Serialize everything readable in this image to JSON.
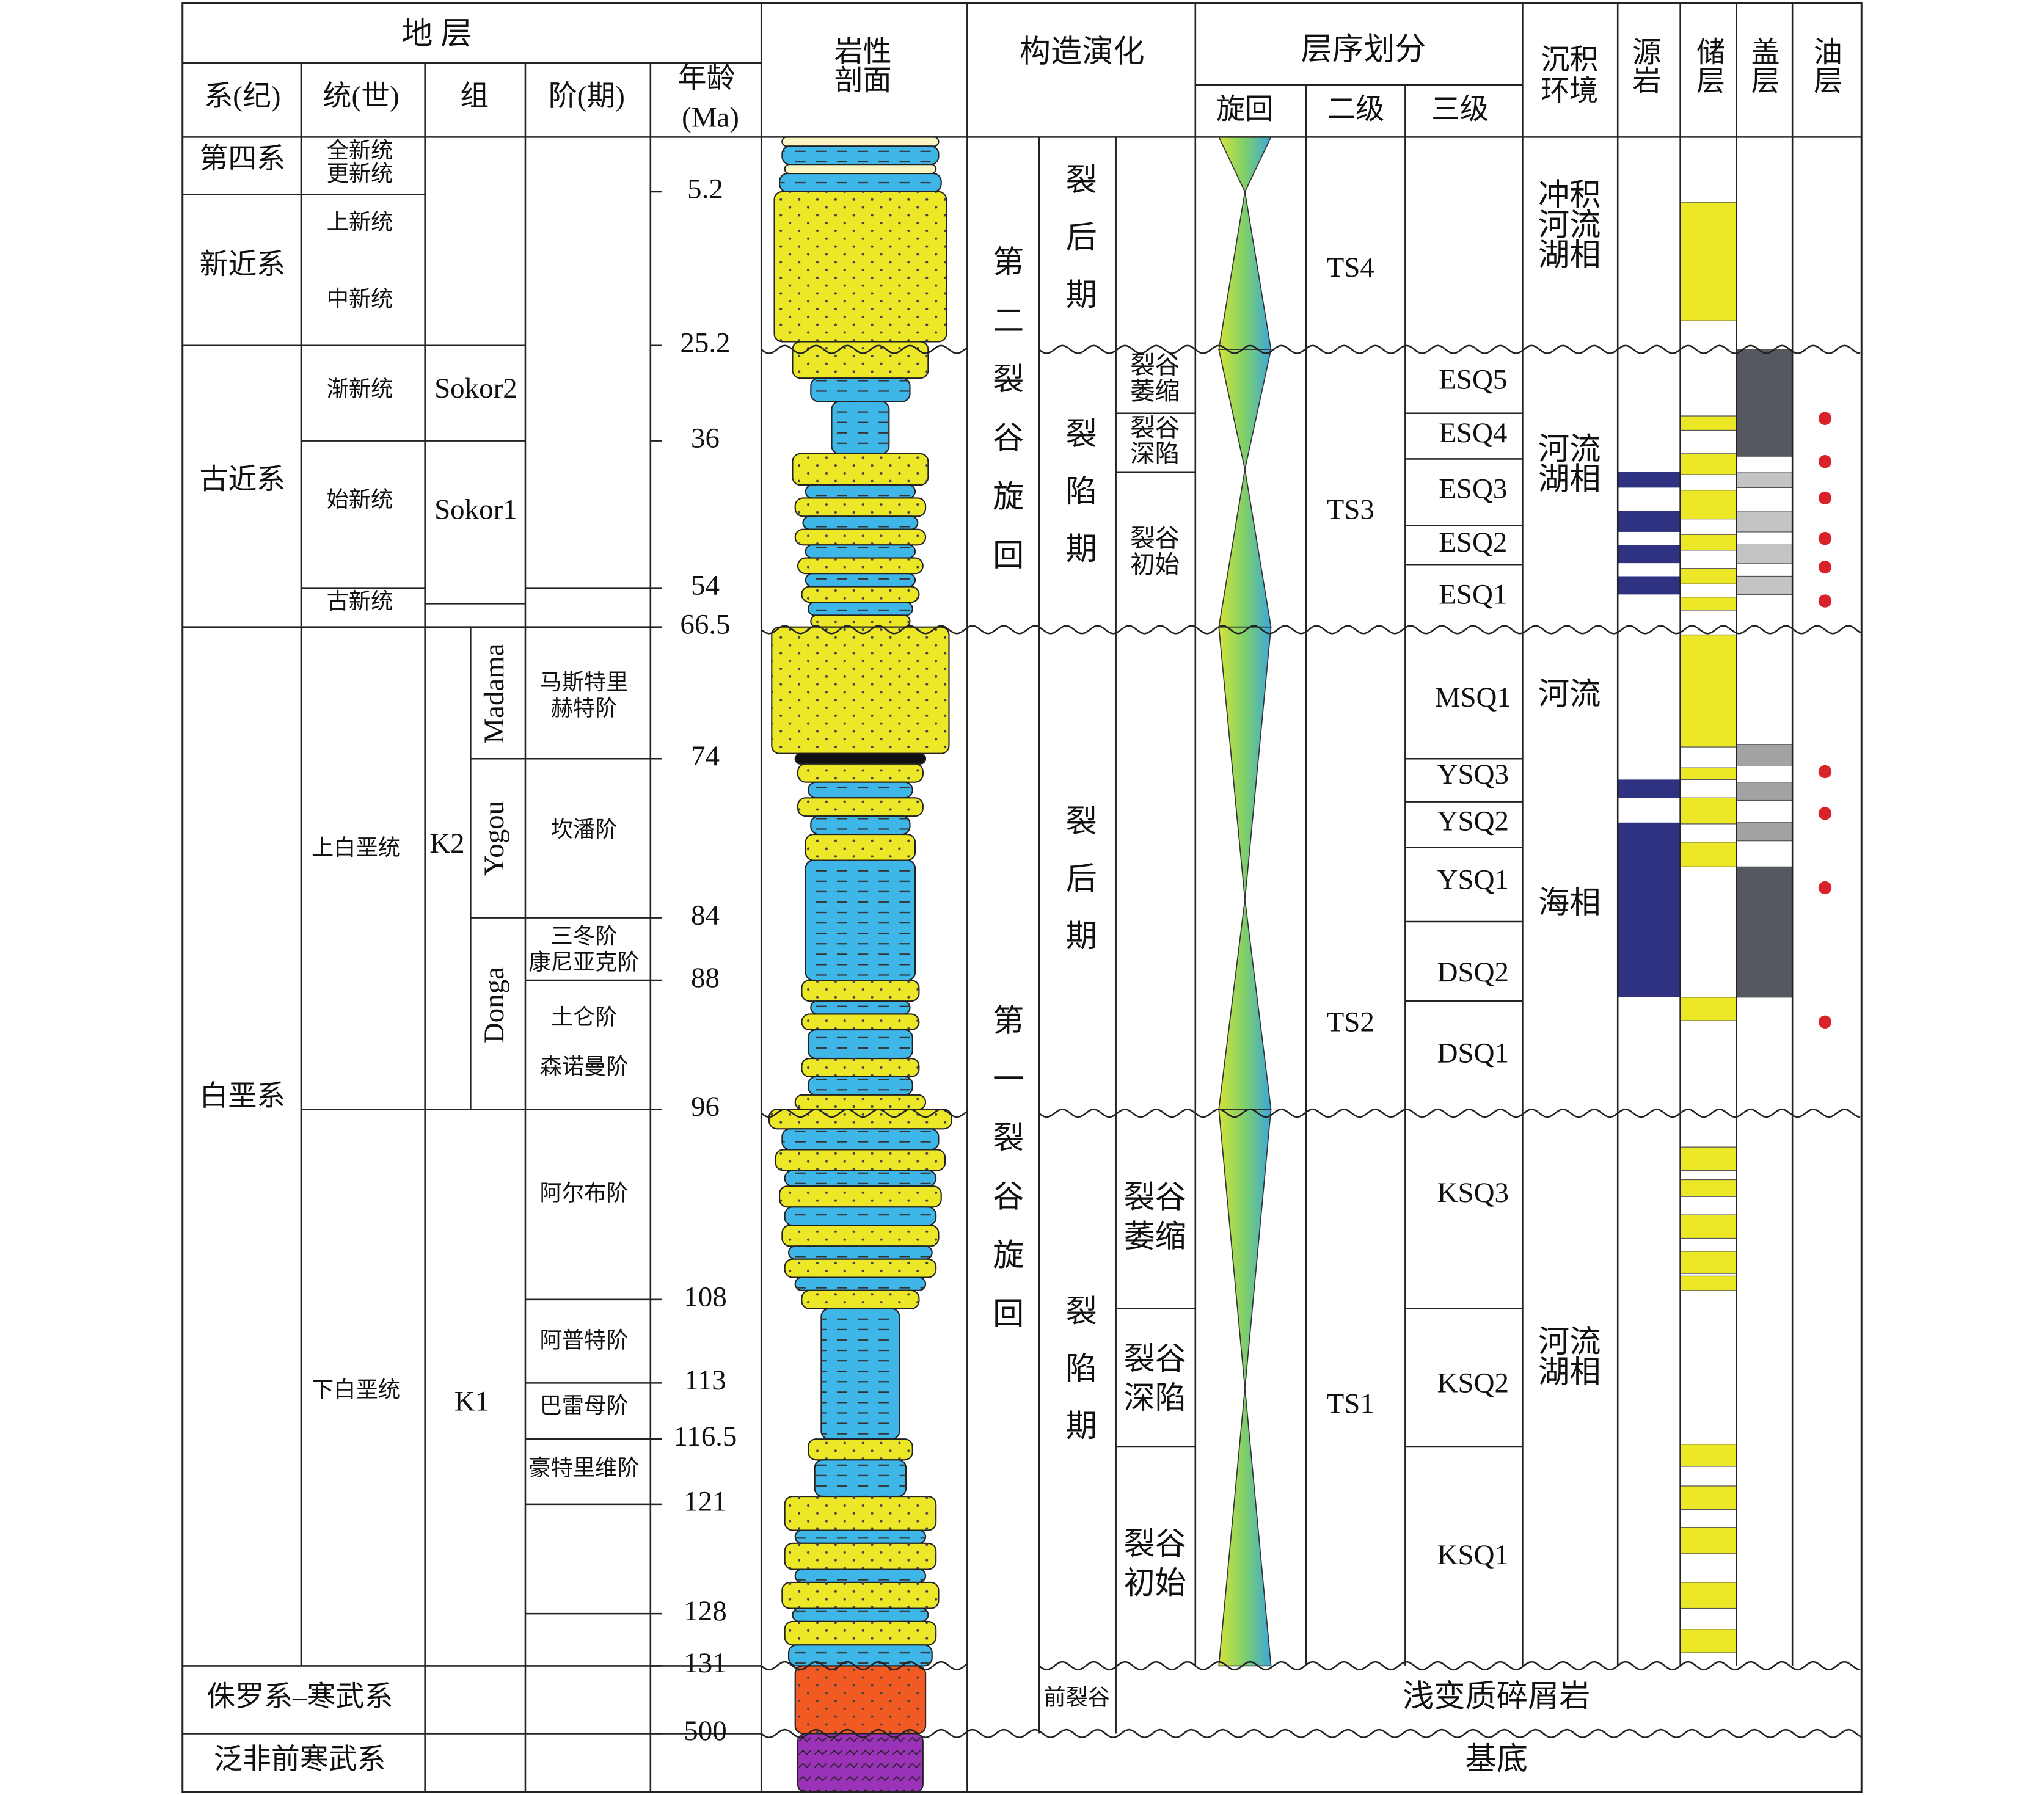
{
  "header": {
    "strata": "地 层",
    "system": "系(纪)",
    "series": "统(世)",
    "formation": "组",
    "stage": "阶(期)",
    "age": [
      "年龄",
      "(Ma)"
    ],
    "lithology": [
      "岩性",
      "剖面"
    ],
    "tectonic": "构造演化",
    "sequence": "层序划分",
    "cycle": "旋回",
    "second": "二级",
    "third": "三级",
    "environment": [
      "沉积",
      "环境"
    ],
    "source": "源岩",
    "reservoir": "储层",
    "seal": "盖层",
    "oil": "油层"
  },
  "systems": [
    "第四系",
    "新近系",
    "古近系",
    "白垩系",
    "侏罗系–寒武系",
    "泛非前寒武系"
  ],
  "series": [
    [
      "全新统",
      "更新统"
    ],
    [
      "上新统"
    ],
    [
      "中新统"
    ],
    [
      "渐新统"
    ],
    [
      "始新统"
    ],
    [
      "古新统"
    ],
    [
      "上白垩统"
    ],
    [
      "下白垩统"
    ]
  ],
  "formations": [
    "Sokor2",
    "Sokor1",
    "K2",
    "K1"
  ],
  "members": [
    "Madama",
    "Yogou",
    "Donga"
  ],
  "stages": [
    [
      "马斯特里",
      "赫特阶"
    ],
    [
      "坎潘阶"
    ],
    [
      "三冬阶",
      "康尼亚克阶"
    ],
    [
      "土仑阶"
    ],
    [
      "森诺曼阶"
    ],
    [
      "阿尔布阶"
    ],
    [
      "阿普特阶"
    ],
    [
      "巴雷母阶"
    ],
    [
      "豪特里维阶"
    ]
  ],
  "ages": [
    5.2,
    25.2,
    36,
    54,
    66.5,
    74,
    84,
    88,
    96,
    108,
    113,
    116.5,
    121,
    128,
    131,
    500
  ],
  "tectonic": {
    "cycles": [
      "第二裂谷旋回",
      "第一裂谷旋回"
    ],
    "periods": [
      "裂后期",
      "裂陷期",
      "裂后期",
      "裂陷期"
    ],
    "prerift": "前裂谷",
    "substages": [
      [
        "裂谷",
        "萎缩"
      ],
      [
        "裂谷",
        "深陷"
      ],
      [
        "裂谷",
        "初始"
      ],
      [
        "裂谷",
        "萎缩"
      ],
      [
        "裂谷",
        "深陷"
      ],
      [
        "裂谷",
        "初始"
      ]
    ]
  },
  "sequences": {
    "second": [
      "TS4",
      "TS3",
      "TS2",
      "TS1"
    ],
    "third": [
      "ESQ5",
      "ESQ4",
      "ESQ3",
      "ESQ2",
      "ESQ1",
      "MSQ1",
      "YSQ3",
      "YSQ2",
      "YSQ1",
      "DSQ2",
      "DSQ1",
      "KSQ3",
      "KSQ2",
      "KSQ1"
    ]
  },
  "environments": [
    [
      "冲积",
      "河流",
      "湖相"
    ],
    [
      "河流",
      "湖相"
    ],
    [
      "河流"
    ],
    [
      "海相"
    ],
    [
      "河流",
      "湖相"
    ]
  ],
  "basement": {
    "rock": "浅变质碎屑岩",
    "base": "基底"
  }
}
